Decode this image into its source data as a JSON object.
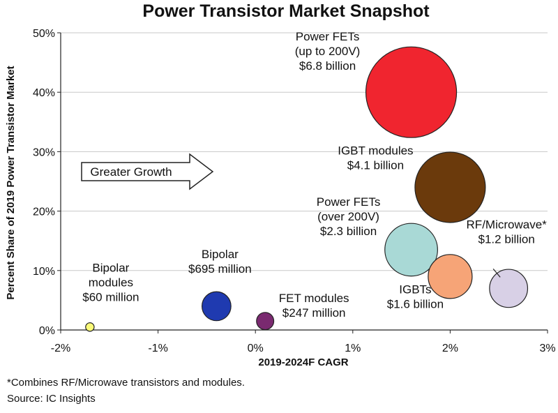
{
  "chart_data": {
    "type": "scatter",
    "subtype": "bubble",
    "title": "Power Transistor Market Snapshot",
    "xlabel": "2019-2024F CAGR",
    "ylabel": "Percent Share of 2019 Power Transistor Market",
    "xlim": [
      -2,
      3
    ],
    "ylim": [
      0,
      50
    ],
    "x_ticks": [
      "-2%",
      "-1%",
      "0%",
      "1%",
      "2%",
      "3%"
    ],
    "y_ticks": [
      "0%",
      "10%",
      "20%",
      "30%",
      "40%",
      "50%"
    ],
    "grid": "horizontal",
    "series": [
      {
        "label_lines": [
          "Power FETs",
          "(up to 200V)",
          "$6.8 billion"
        ],
        "x": 1.6,
        "y": 40.0,
        "size_billion": 6.8,
        "color": "#f0252f"
      },
      {
        "label_lines": [
          "IGBT modules",
          "$4.1 billion"
        ],
        "x": 2.0,
        "y": 24.0,
        "size_billion": 4.1,
        "color": "#6b3a0c"
      },
      {
        "label_lines": [
          "Power FETs",
          "(over 200V)",
          "$2.3 billion"
        ],
        "x": 1.6,
        "y": 13.5,
        "size_billion": 2.3,
        "color": "#a9d9d6"
      },
      {
        "label_lines": [
          "IGBTs",
          "$1.6 billion"
        ],
        "x": 2.0,
        "y": 9.0,
        "size_billion": 1.6,
        "color": "#f6a477"
      },
      {
        "label_lines": [
          "RF/Microwave*",
          "$1.2 billion"
        ],
        "x": 2.6,
        "y": 7.0,
        "size_billion": 1.2,
        "color": "#d8d0e6"
      },
      {
        "label_lines": [
          "Bipolar",
          "$695 million"
        ],
        "x": -0.4,
        "y": 4.0,
        "size_billion": 0.695,
        "color": "#1f3ab0"
      },
      {
        "label_lines": [
          "FET modules",
          "$247 million"
        ],
        "x": 0.1,
        "y": 1.5,
        "size_billion": 0.247,
        "color": "#7a2a70"
      },
      {
        "label_lines": [
          "Bipolar",
          "modules",
          "$60 million"
        ],
        "x": -1.7,
        "y": 0.5,
        "size_billion": 0.06,
        "color": "#fafa78"
      }
    ],
    "annotation": "Greater Growth"
  },
  "footnote": "*Combines RF/Microwave transistors and modules.",
  "source": "Source: IC Insights"
}
